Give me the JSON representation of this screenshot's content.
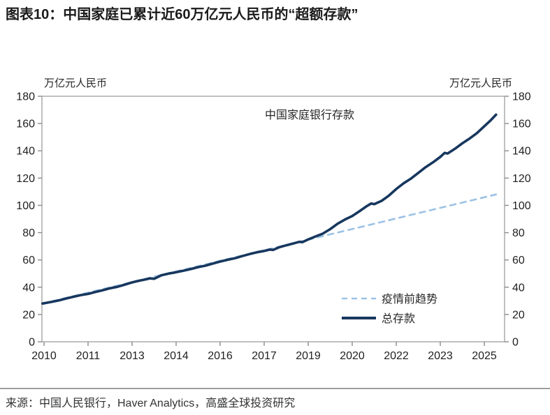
{
  "page": {
    "title": "图表10：中国家庭已累计近60万亿元人民币的“超额存款”",
    "source": "来源：中国人民银行，Haver Analytics，高盛全球投资研究"
  },
  "colors": {
    "total_deposits": "#17375E",
    "pre_covid_trend": "#9CC2E5",
    "axis_frame": "#A6A6A6",
    "tick_mark": "#8C8C8C",
    "tick_text": "#1F1F1F",
    "annotation_text": "#262626"
  },
  "chart_data": {
    "type": "line",
    "annotation": "中国家庭银行存款",
    "left_axis_unit": "万亿元人民币",
    "right_axis_unit": "万亿元人民币",
    "ylim": [
      0,
      180
    ],
    "yticks": [
      0,
      20,
      40,
      60,
      80,
      100,
      120,
      140,
      160,
      180
    ],
    "grid": false,
    "legend_position": "inside-lower-right",
    "xlim": [
      2009.9,
      2026.1
    ],
    "xticks": [
      2010,
      2011.5,
      2013,
      2014.5,
      2016,
      2017.5,
      2019,
      2020.5,
      2022,
      2023.5,
      2025
    ],
    "xtick_labels": [
      "2010",
      "2011",
      "2013",
      "2014",
      "2016",
      "2017",
      "2019",
      "2020",
      "2022",
      "2023",
      "2025"
    ],
    "legend": [
      {
        "label": "疫情前趋势",
        "series_key": "pre_covid_trend",
        "style": "dashed"
      },
      {
        "label": "总存款",
        "series_key": "total_deposits",
        "style": "solid"
      }
    ],
    "series": [
      {
        "name": "疫情前趋势",
        "key": "pre_covid_trend",
        "style": "dashed",
        "x": [
          2009.95,
          2025.4
        ],
        "values": [
          28.0,
          108.0
        ]
      },
      {
        "name": "总存款",
        "key": "total_deposits",
        "style": "solid",
        "x": [
          2009.95,
          2010.25,
          2010.5,
          2010.75,
          2011.0,
          2011.25,
          2011.5,
          2011.75,
          2012.0,
          2012.25,
          2012.5,
          2012.75,
          2013.0,
          2013.25,
          2013.5,
          2013.6,
          2013.75,
          2014.0,
          2014.25,
          2014.5,
          2014.75,
          2015.0,
          2015.25,
          2015.5,
          2015.75,
          2016.0,
          2016.25,
          2016.5,
          2016.75,
          2017.0,
          2017.25,
          2017.5,
          2017.7,
          2017.8,
          2018.0,
          2018.25,
          2018.5,
          2018.7,
          2018.8,
          2019.0,
          2019.25,
          2019.5,
          2019.75,
          2020.0,
          2020.25,
          2020.5,
          2020.75,
          2021.0,
          2021.15,
          2021.25,
          2021.5,
          2021.75,
          2022.0,
          2022.25,
          2022.5,
          2022.75,
          2023.0,
          2023.25,
          2023.5,
          2023.65,
          2023.75,
          2024.0,
          2024.25,
          2024.5,
          2024.75,
          2025.0,
          2025.2,
          2025.4
        ],
        "values": [
          28.0,
          29.2,
          30.3,
          31.7,
          33.0,
          34.2,
          35.1,
          36.5,
          37.8,
          39.2,
          40.3,
          41.9,
          43.5,
          44.8,
          45.9,
          46.5,
          46.2,
          48.8,
          50.0,
          51.0,
          52.1,
          53.3,
          54.7,
          55.8,
          57.3,
          58.8,
          60.1,
          61.2,
          62.8,
          64.3,
          65.6,
          66.6,
          67.6,
          67.3,
          69.2,
          70.7,
          72.1,
          73.3,
          73.0,
          75.0,
          77.2,
          79.3,
          82.6,
          86.5,
          89.6,
          92.2,
          95.8,
          99.5,
          101.4,
          100.9,
          103.3,
          107.2,
          112.0,
          116.2,
          119.6,
          123.8,
          128.0,
          131.5,
          135.5,
          138.5,
          138.0,
          141.5,
          145.5,
          149.0,
          153.0,
          158.0,
          162.0,
          166.5
        ]
      }
    ]
  }
}
